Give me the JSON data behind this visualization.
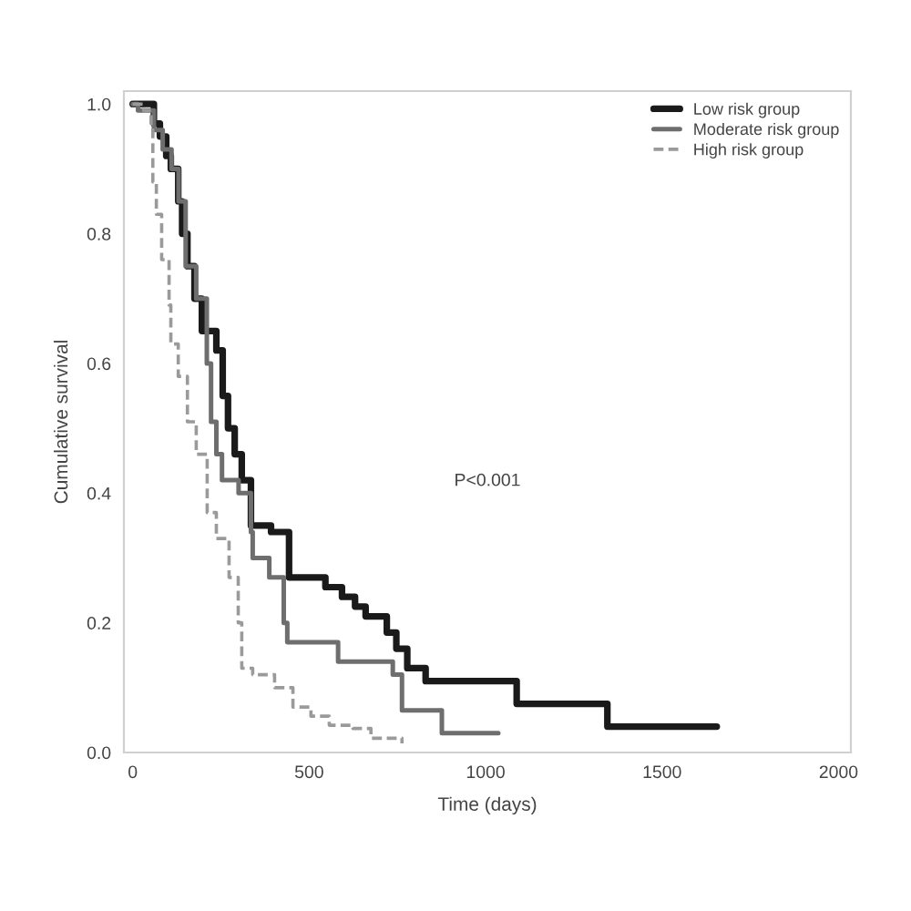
{
  "chart_data": {
    "type": "step",
    "xlabel": "Time (days)",
    "ylabel": "Cumulative survival",
    "xlim": [
      -25,
      2035
    ],
    "xticks": [
      0,
      500,
      1000,
      1500,
      2000
    ],
    "ylim": [
      0,
      1.02
    ],
    "yticks": [
      {
        "value": 0,
        "label": "0.0"
      },
      {
        "value": 0.2,
        "label": "0.2"
      },
      {
        "value": 0.4,
        "label": "0.4"
      },
      {
        "value": 0.6,
        "label": "0.6"
      },
      {
        "value": 0.8,
        "label": "0.8"
      },
      {
        "value": 1,
        "label": "1.0"
      }
    ],
    "legend": "top right",
    "annotations": [
      "P<0.001"
    ],
    "series": [
      {
        "name": "Low risk group",
        "color": "#1a1a1a",
        "line_style": "solid",
        "x": [
          0,
          60,
          77,
          95,
          108,
          129,
          140,
          155,
          175,
          196,
          237,
          255,
          270,
          289,
          309,
          335,
          392,
          443,
          546,
          593,
          630,
          660,
          720,
          747,
          778,
          830,
          1088,
          1345,
          1655
        ],
        "values": [
          1.0,
          0.97,
          0.95,
          0.92,
          0.9,
          0.85,
          0.8,
          0.75,
          0.7,
          0.65,
          0.62,
          0.55,
          0.5,
          0.46,
          0.42,
          0.35,
          0.34,
          0.27,
          0.255,
          0.24,
          0.225,
          0.21,
          0.185,
          0.16,
          0.13,
          0.11,
          0.075,
          0.04,
          0.04
        ]
      },
      {
        "name": "Moderate risk group",
        "color": "#6e6e6e",
        "line_style": "solid",
        "x": [
          0,
          15,
          60,
          85,
          110,
          130,
          150,
          180,
          210,
          222,
          237,
          253,
          300,
          335,
          340,
          387,
          428,
          438,
          582,
          737,
          763,
          876,
          1036
        ],
        "values": [
          1.0,
          0.99,
          0.96,
          0.93,
          0.9,
          0.85,
          0.75,
          0.7,
          0.6,
          0.51,
          0.46,
          0.42,
          0.4,
          0.34,
          0.3,
          0.27,
          0.2,
          0.17,
          0.14,
          0.12,
          0.065,
          0.03,
          0.03
        ]
      },
      {
        "name": "High risk group",
        "color": "#9a9a9a",
        "line_style": "dashed",
        "x": [
          0,
          31,
          52,
          57,
          67,
          82,
          103,
          108,
          129,
          155,
          180,
          211,
          237,
          273,
          299,
          309,
          340,
          402,
          454,
          505,
          557,
          624,
          675,
          763
        ],
        "values": [
          1.0,
          0.99,
          0.97,
          0.88,
          0.83,
          0.76,
          0.69,
          0.63,
          0.58,
          0.51,
          0.46,
          0.37,
          0.33,
          0.27,
          0.2,
          0.13,
          0.12,
          0.1,
          0.07,
          0.056,
          0.042,
          0.037,
          0.022,
          0.014
        ]
      }
    ]
  }
}
